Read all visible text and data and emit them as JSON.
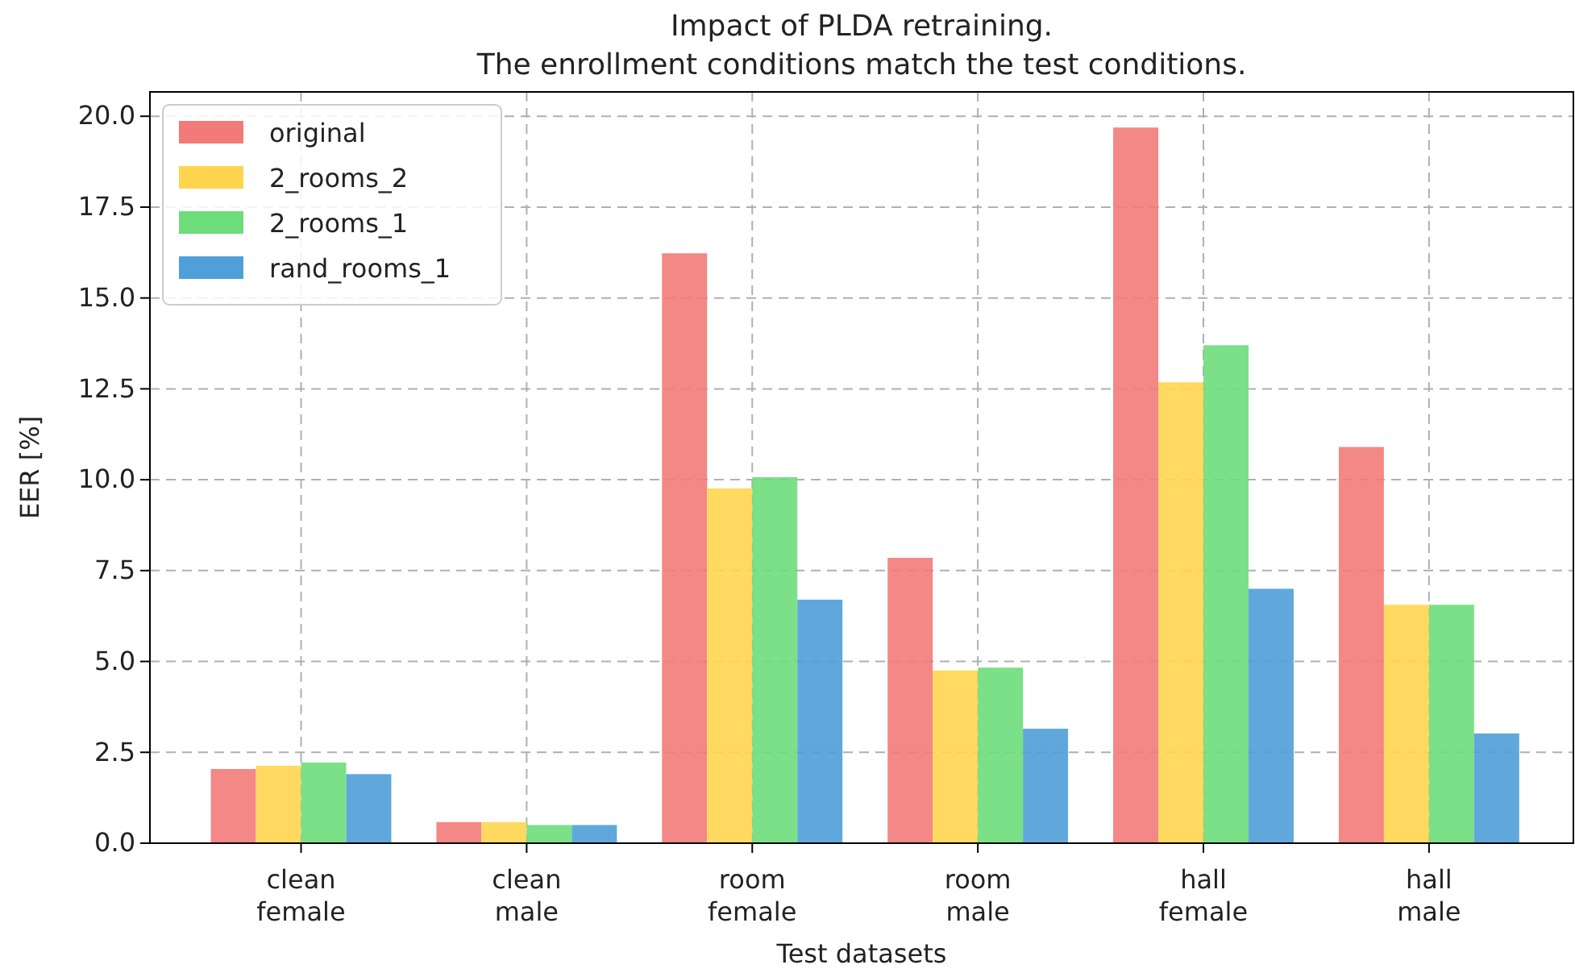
{
  "chart_data": {
    "type": "bar",
    "title": "Impact of PLDA retraining.\nThe enrollment conditions match the test conditions.",
    "xlabel": "Test datasets",
    "ylabel": "EER [%]",
    "categories": [
      "clean\nfemale",
      "clean\nmale",
      "room\nfemale",
      "room\nmale",
      "hall\nfemale",
      "hall\nmale"
    ],
    "series": [
      {
        "name": "original",
        "color": "#f27b79",
        "values": [
          2.04,
          0.58,
          16.23,
          7.85,
          19.69,
          10.9
        ]
      },
      {
        "name": "2_rooms_2",
        "color": "#ffd54f",
        "values": [
          2.13,
          0.58,
          9.76,
          4.75,
          12.68,
          6.56
        ]
      },
      {
        "name": "2_rooms_1",
        "color": "#6ddd7a",
        "values": [
          2.22,
          0.5,
          10.07,
          4.83,
          13.7,
          6.56
        ]
      },
      {
        "name": "rand_rooms_1",
        "color": "#4f9fd8",
        "values": [
          1.9,
          0.5,
          6.7,
          3.15,
          7.0,
          3.02
        ]
      }
    ],
    "ylim": [
      0,
      20.67
    ],
    "yticks": [
      {
        "value": 0,
        "label": "0.0"
      },
      2.5,
      {
        "value": 5,
        "label": "5.0"
      },
      7.5,
      {
        "value": 10,
        "label": "10.0"
      },
      12.5,
      {
        "value": 15,
        "label": "15.0"
      },
      17.5,
      {
        "value": 20,
        "label": "20.0"
      }
    ],
    "grid": true,
    "legend": "top left"
  }
}
